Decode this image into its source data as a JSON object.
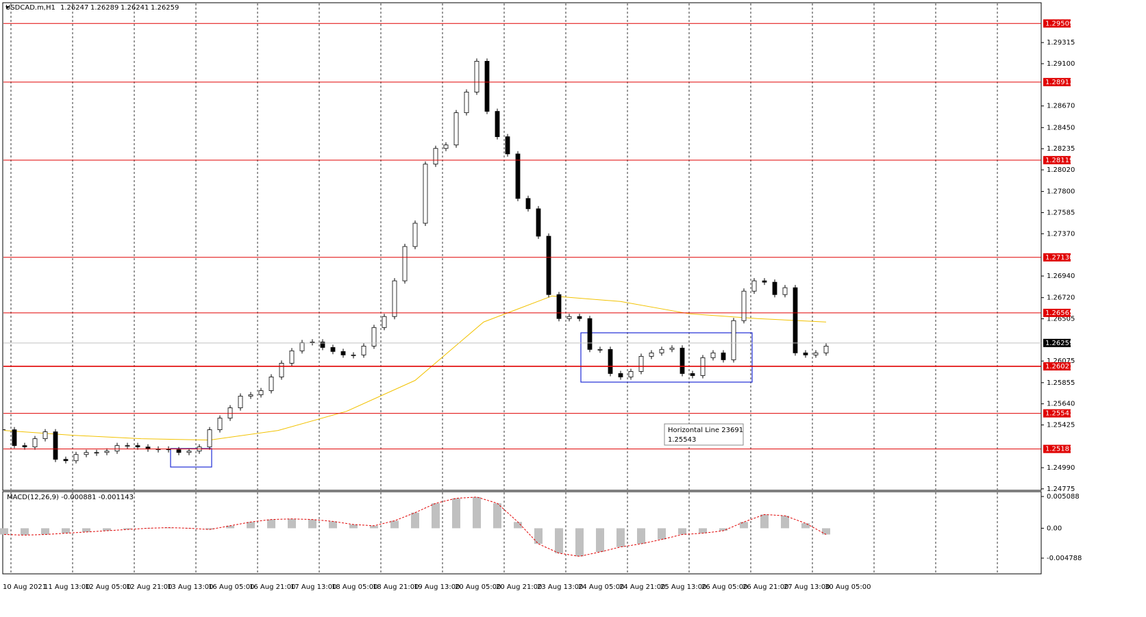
{
  "chart_data": {
    "type": "candlestick",
    "symbol": "USDCAD.m,H1",
    "ohlc": [
      1.26247,
      1.26289,
      1.26241,
      1.26259
    ],
    "ylim": [
      1.2476,
      1.2972
    ],
    "yticks": [
      {
        "value": 1.29315,
        "label": "1.29315"
      },
      {
        "value": 1.291,
        "label": "1.29100"
      },
      {
        "value": 1.2867,
        "label": "1.28670"
      },
      {
        "value": 1.2845,
        "label": "1.28450"
      },
      {
        "value": 1.28235,
        "label": "1.28235"
      },
      {
        "value": 1.2802,
        "label": "1.28020"
      },
      {
        "value": 1.278,
        "label": "1.27800"
      },
      {
        "value": 1.27585,
        "label": "1.27585"
      },
      {
        "value": 1.2737,
        "label": "1.27370"
      },
      {
        "value": 1.2694,
        "label": "1.26940"
      },
      {
        "value": 1.2672,
        "label": "1.26720"
      },
      {
        "value": 1.26505,
        "label": "1.26505"
      },
      {
        "value": 1.26075,
        "label": "1.26075"
      },
      {
        "value": 1.25855,
        "label": "1.25855"
      },
      {
        "value": 1.2564,
        "label": "1.25640"
      },
      {
        "value": 1.25425,
        "label": "1.25425"
      },
      {
        "value": 1.2499,
        "label": "1.24990"
      },
      {
        "value": 1.24775,
        "label": "1.24775"
      }
    ],
    "levels": [
      1.29509,
      1.28913,
      1.28119,
      {
        "value": 1.2713,
        "label": "1.27130"
      },
      1.26565,
      1.26021,
      1.25543,
      1.25181
    ],
    "current_price": 1.26259,
    "x_labels": [
      "10 Aug 2021",
      "11 Aug 13:00",
      "12 Aug 05:00",
      "12 Aug 21:00",
      "13 Aug 13:00",
      "16 Aug 05:00",
      "16 Aug 21:00",
      "17 Aug 13:00",
      "18 Aug 05:00",
      "18 Aug 21:00",
      "19 Aug 13:00",
      "20 Aug 05:00",
      "20 Aug 21:00",
      "23 Aug 13:00",
      "24 Aug 05:00",
      "24 Aug 21:00",
      "25 Aug 13:00",
      "26 Aug 05:00",
      "26 Aug 21:00",
      "27 Aug 13:00",
      "30 Aug 05:00"
    ],
    "closes": [
      1.25376,
      1.25215,
      1.25201,
      1.25285,
      1.25355,
      1.25075,
      1.25061,
      1.25124,
      1.25145,
      1.25145,
      1.25159,
      1.25215,
      1.25215,
      1.25201,
      1.2518,
      1.2518,
      1.25173,
      1.25145,
      1.25159,
      1.25201,
      1.25376,
      1.25494,
      1.25599,
      1.25718,
      1.25732,
      1.25774,
      1.25913,
      1.26053,
      1.26179,
      1.26262,
      1.26269,
      1.26213,
      1.26172,
      1.26137,
      1.26137,
      1.26227,
      1.26416,
      1.26528,
      1.26891,
      1.2724,
      1.27477,
      1.28078,
      1.28238,
      1.28273,
      1.28601,
      1.28811,
      1.29125,
      1.28615,
      1.28357,
      1.28182,
      1.27729,
      1.27624,
      1.27345,
      1.26751,
      1.26507,
      1.26528,
      1.26507,
      1.26193,
      1.26193,
      1.25948,
      1.25913,
      1.25969,
      1.26123,
      1.26158,
      1.26193,
      1.26207,
      1.25948,
      1.25927,
      1.26109,
      1.26158,
      1.26088,
      1.26486,
      1.26786,
      1.26891,
      1.26877,
      1.26751,
      1.26821,
      1.26158,
      1.26137,
      1.26158,
      1.26227
    ],
    "ma": {
      "color": "#f2c200",
      "values": [
        1.25369,
        1.2532,
        1.25285,
        1.25271,
        1.25369,
        1.25564,
        1.25878,
        1.26472,
        1.26737,
        1.26681,
        1.26556,
        1.26507,
        1.26472
      ]
    },
    "macd": {
      "label": "MACD(12,26,9) -0.000881 -0.001143",
      "ylim": [
        -0.0072,
        0.00575
      ],
      "yticks": [
        0.005088,
        {
          "value": 0,
          "label": "0.00"
        },
        -0.004788
      ],
      "values": [
        -0.001,
        -0.0011,
        -0.001,
        -0.0008,
        -0.0006,
        -0.0004,
        -0.0002,
        0,
        0.0001,
        0,
        -0.0002,
        0.0004,
        0.001,
        0.0014,
        0.0015,
        0.0014,
        0.0011,
        0.0006,
        0.0004,
        0.0012,
        0.0025,
        0.004,
        0.0048,
        0.005,
        0.004,
        0.001,
        -0.0025,
        -0.004,
        -0.0045,
        -0.0038,
        -0.003,
        -0.0025,
        -0.0018,
        -0.001,
        -0.0008,
        -0.0004,
        0.001,
        0.0022,
        0.002,
        0.0008,
        -0.001
      ]
    },
    "tooltip": {
      "title": "Horizontal Line 23691",
      "value": "1.25543"
    }
  }
}
